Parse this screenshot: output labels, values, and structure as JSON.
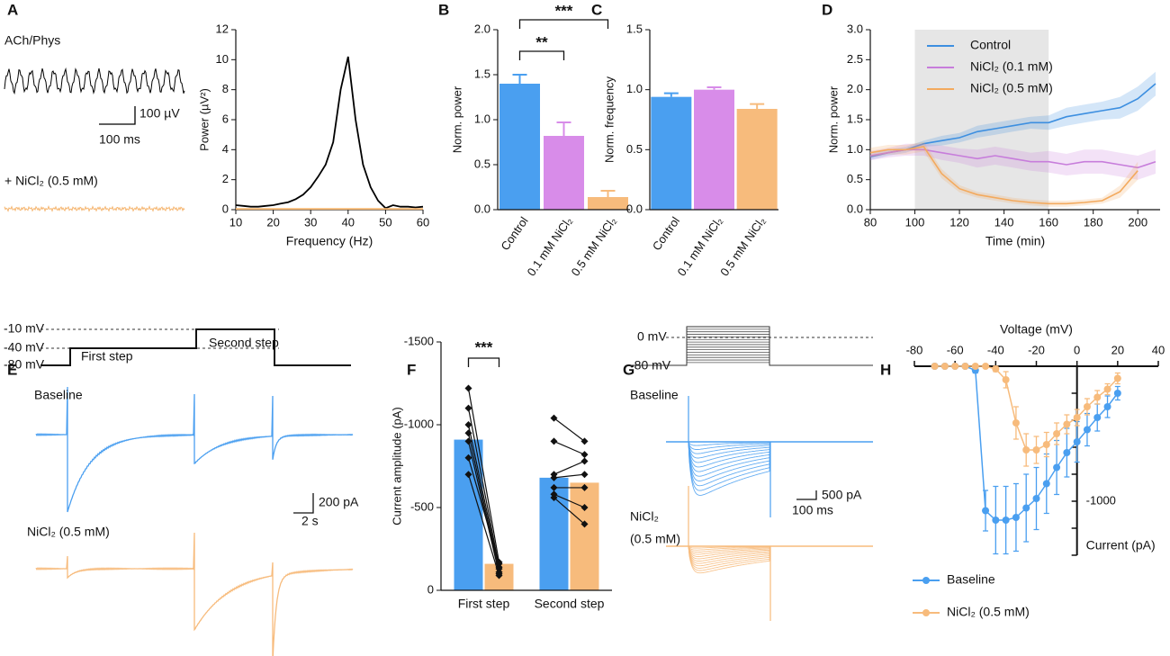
{
  "chart_data": [
    {
      "panel": "A",
      "type": "line",
      "annotations": [
        "ACh/Phys",
        "100 µV",
        "100 ms",
        "+ NiCl₂ (0.5 mM)"
      ],
      "xlabel": "Frequency (Hz)",
      "ylabel": "Power (µV²)",
      "x": [
        10,
        12,
        14,
        16,
        18,
        20,
        22,
        24,
        26,
        28,
        30,
        32,
        34,
        36,
        38,
        40,
        42,
        44,
        46,
        48,
        50,
        52,
        54,
        56,
        58,
        60
      ],
      "series": [
        {
          "color": "#000000",
          "values": [
            0.3,
            0.25,
            0.2,
            0.2,
            0.25,
            0.3,
            0.4,
            0.5,
            0.7,
            1.0,
            1.5,
            2.2,
            3.0,
            4.5,
            8.0,
            10.2,
            6.0,
            3.0,
            1.5,
            0.6,
            0.1,
            0.3,
            0.2,
            0.2,
            0.15,
            0.2
          ]
        },
        {
          "color": "#f5b56f",
          "values": [
            0.05,
            0.05,
            0.05,
            0.05,
            0.05,
            0.05,
            0.05,
            0.05,
            0.05,
            0.05,
            0.05,
            0.05,
            0.05,
            0.05,
            0.05,
            0.05,
            0.05,
            0.05,
            0.05,
            0.05,
            0.05,
            0.05,
            0.05,
            0.05,
            0.05,
            0.05
          ]
        }
      ],
      "xlim": [
        10,
        60
      ],
      "xticks": [
        10,
        20,
        30,
        40,
        50,
        60
      ],
      "ylim": [
        0,
        12
      ],
      "yticks": [
        0,
        2,
        4,
        6,
        8,
        10,
        12
      ]
    },
    {
      "panel": "B",
      "type": "bar",
      "ylabel": "Norm. power",
      "categories": [
        "Control",
        "0.1 mM NiCl₂",
        "0.5 mM NiCl₂"
      ],
      "values": [
        1.4,
        0.82,
        0.14
      ],
      "errors": [
        0.1,
        0.15,
        0.07
      ],
      "colors": [
        "#4a9ff0",
        "#d88ce9",
        "#f7bb7c"
      ],
      "ylim": [
        0,
        2
      ],
      "yticks": [
        {
          "value": 0,
          "label": "0.0"
        },
        {
          "value": 0.5,
          "label": "0.5"
        },
        {
          "value": 1,
          "label": "1.0"
        },
        {
          "value": 1.5,
          "label": "1.5"
        },
        {
          "value": 2,
          "label": "2.0"
        }
      ],
      "significance": [
        {
          "label": "**",
          "from": 0,
          "to": 1
        },
        {
          "label": "***",
          "from": 0,
          "to": 2
        }
      ]
    },
    {
      "panel": "C",
      "type": "bar",
      "ylabel": "Norm. frequency",
      "categories": [
        "Control",
        "0.1 mM NiCl₂",
        "0.5 mM NiCl₂"
      ],
      "values": [
        0.94,
        1.0,
        0.84
      ],
      "errors": [
        0.03,
        0.02,
        0.04
      ],
      "colors": [
        "#4a9ff0",
        "#d88ce9",
        "#f7bb7c"
      ],
      "ylim": [
        0,
        1.5
      ],
      "yticks": [
        {
          "value": 0,
          "label": "0.0"
        },
        {
          "value": 0.5,
          "label": "0.5"
        },
        {
          "value": 1,
          "label": "1.0"
        },
        {
          "value": 1.5,
          "label": "1.5"
        }
      ]
    },
    {
      "panel": "D",
      "type": "line",
      "xlabel": "Time (min)",
      "ylabel": "Norm. power",
      "x": [
        80,
        88,
        96,
        104,
        112,
        120,
        128,
        136,
        144,
        152,
        160,
        168,
        176,
        184,
        192,
        200,
        208
      ],
      "series": [
        {
          "name": "Control",
          "color": "#3d8fe0",
          "values": [
            0.88,
            0.95,
            1.0,
            1.1,
            1.15,
            1.2,
            1.3,
            1.35,
            1.4,
            1.45,
            1.45,
            1.55,
            1.6,
            1.65,
            1.7,
            1.85,
            2.1
          ],
          "errors": [
            0.05,
            0.05,
            0.05,
            0.05,
            0.08,
            0.08,
            0.1,
            0.1,
            0.1,
            0.1,
            0.12,
            0.15,
            0.15,
            0.15,
            0.18,
            0.2,
            0.2
          ]
        },
        {
          "name": "NiCl₂ (0.1 mM)",
          "color": "#c77ddb",
          "values": [
            0.9,
            0.95,
            1.0,
            1.0,
            0.95,
            0.9,
            0.85,
            0.9,
            0.85,
            0.8,
            0.8,
            0.75,
            0.8,
            0.8,
            0.75,
            0.7,
            0.8
          ],
          "errors": [
            0.08,
            0.08,
            0.1,
            0.1,
            0.12,
            0.12,
            0.15,
            0.15,
            0.15,
            0.15,
            0.18,
            0.18,
            0.2,
            0.2,
            0.2,
            0.2,
            0.2
          ]
        },
        {
          "name": "NiCl₂ (0.5 mM)",
          "color": "#f3aa5e",
          "values": [
            0.95,
            1.0,
            1.0,
            1.05,
            0.6,
            0.35,
            0.25,
            0.2,
            0.15,
            0.12,
            0.1,
            0.1,
            0.12,
            0.15,
            0.3,
            0.65,
            null
          ],
          "errors": [
            0.08,
            0.08,
            0.08,
            0.08,
            0.08,
            0.06,
            0.05,
            0.05,
            0.05,
            0.05,
            0.05,
            0.05,
            0.05,
            0.05,
            0.1,
            0.15,
            null
          ]
        }
      ],
      "error_style": "band",
      "shade": [
        100,
        160
      ],
      "legend": "upper left",
      "xlim": [
        80,
        210
      ],
      "xticks": [
        80,
        100,
        120,
        140,
        160,
        180,
        200
      ],
      "ylim": [
        0,
        3
      ],
      "yticks": [
        {
          "value": 0,
          "label": "0.0"
        },
        {
          "value": 0.5,
          "label": "0.5"
        },
        {
          "value": 1,
          "label": "1.0"
        },
        {
          "value": 1.5,
          "label": "1.5"
        },
        {
          "value": 2,
          "label": "2.0"
        },
        {
          "value": 2.5,
          "label": "2.5"
        },
        {
          "value": 3,
          "label": "3.0"
        }
      ]
    },
    {
      "panel": "E",
      "type": "traces",
      "annotations": [
        "-10 mV",
        "-40 mV",
        "-80 mV",
        "First step",
        "Second step",
        "Baseline",
        "NiCl₂ (0.5 mM)",
        "200 pA",
        "2 s"
      ]
    },
    {
      "panel": "F",
      "type": "paired_bar",
      "ylabel": "Current amplitude (pA)",
      "categories": [
        "First step",
        "Second step"
      ],
      "series": [
        {
          "color": "#4a9ff0",
          "values": [
            -910,
            -680
          ],
          "points": [
            [
              -1220,
              -1100,
              -1000,
              -950,
              -900,
              -800,
              -700
            ],
            [
              -1040,
              -900,
              -700,
              -680,
              -620,
              -580,
              -560
            ]
          ]
        },
        {
          "color": "#f7bb7c",
          "values": [
            -160,
            -650
          ],
          "points": [
            [
              -170,
              -140,
              -130,
              -110,
              -100,
              -160,
              -90
            ],
            [
              -900,
              -820,
              -780,
              -700,
              -620,
              -500,
              -400
            ]
          ]
        }
      ],
      "significance": [
        {
          "label": "***",
          "category": 0
        }
      ],
      "ylim": [
        0,
        -1500
      ],
      "yticks": [
        0,
        -500,
        -1000,
        -1500
      ]
    },
    {
      "panel": "G",
      "type": "traces",
      "annotations": [
        "0 mV",
        "-80 mV",
        "Baseline",
        "NiCl₂",
        "(0.5 mM)",
        "500 pA",
        "100 ms"
      ]
    },
    {
      "panel": "H",
      "type": "line",
      "xlabel": "Voltage (mV)",
      "ylabel": "Current (pA)",
      "x": [
        -70,
        -65,
        -60,
        -55,
        -50,
        -45,
        -40,
        -35,
        -30,
        -25,
        -20,
        -15,
        -10,
        -5,
        0,
        5,
        10,
        15,
        20
      ],
      "series": [
        {
          "name": "Baseline",
          "color": "#4a9ff0",
          "values": [
            0,
            0,
            0,
            0,
            -30,
            -1070,
            -1140,
            -1140,
            -1120,
            -1050,
            -980,
            -870,
            -750,
            -640,
            -560,
            -470,
            -380,
            -300,
            -200
          ],
          "errors": [
            10,
            10,
            10,
            10,
            20,
            150,
            250,
            250,
            250,
            250,
            230,
            220,
            200,
            180,
            150,
            120,
            100,
            80,
            50
          ]
        },
        {
          "name": "NiCl₂ (0.5 mM)",
          "color": "#f7bb7c",
          "values": [
            0,
            0,
            0,
            0,
            0,
            0,
            -20,
            -100,
            -420,
            -620,
            -620,
            -580,
            -500,
            -430,
            -380,
            -300,
            -230,
            -170,
            -90
          ],
          "errors": [
            10,
            10,
            10,
            10,
            10,
            10,
            20,
            60,
            120,
            120,
            100,
            90,
            80,
            70,
            60,
            60,
            50,
            40,
            40
          ]
        }
      ],
      "error_style": "bars",
      "markers": true,
      "axes_cross_origin": true,
      "legend": "below",
      "xlim": [
        -80,
        40
      ],
      "xticks": [
        -80,
        -60,
        -40,
        -20,
        0,
        20,
        40
      ],
      "ylim": [
        -1400,
        0
      ],
      "yticks": [
        -1000
      ],
      "yminorticks": [
        -1400,
        -1200,
        -800,
        -600,
        -400,
        -200
      ]
    }
  ]
}
